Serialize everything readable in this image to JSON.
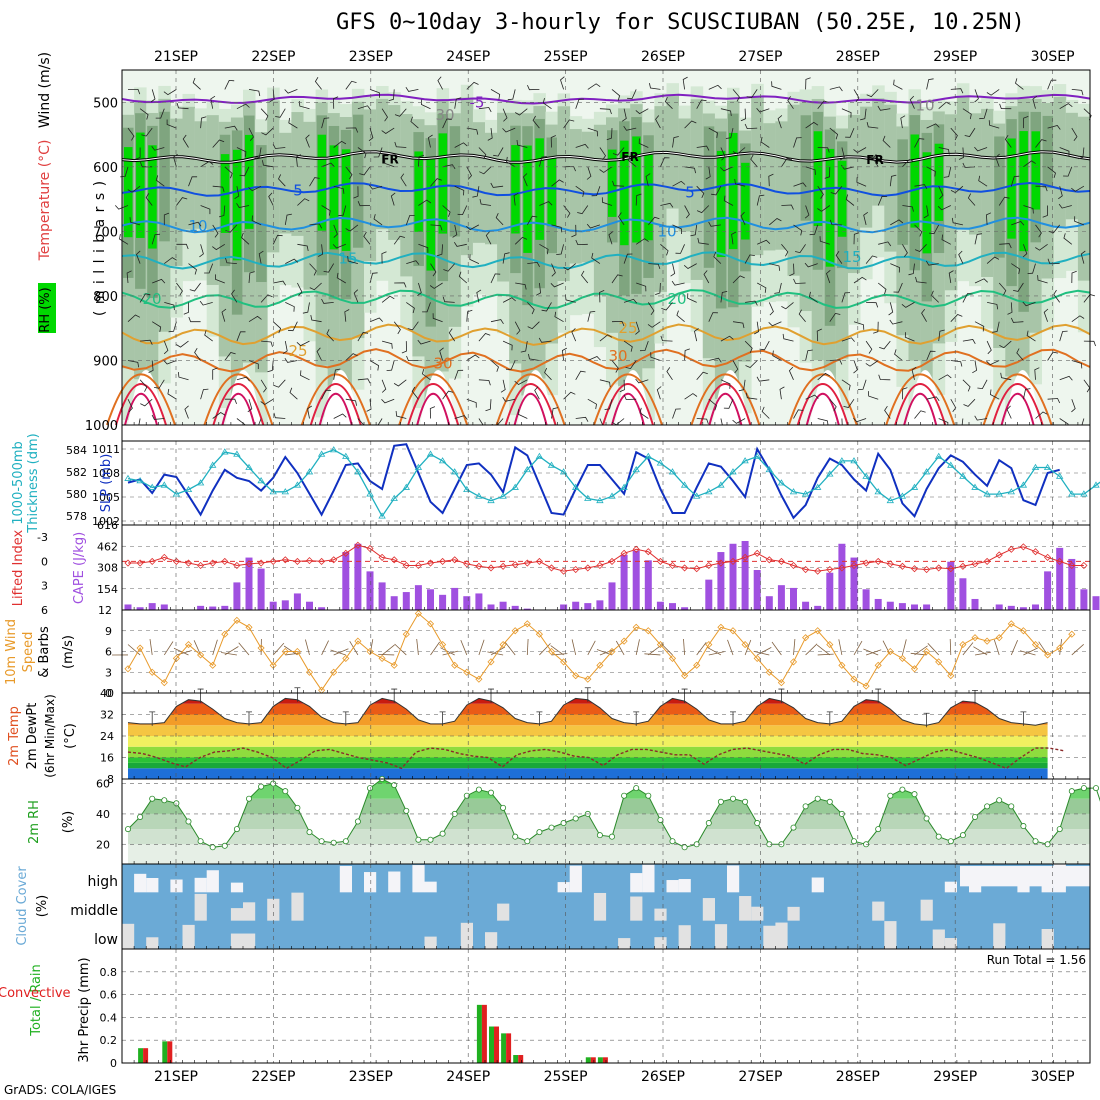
{
  "title": "GFS 0~10day 3-hourly for SCUSCIUBAN (50.25E, 10.25N)",
  "footer": "GrADS: COLA/IGES",
  "colors": {
    "rh_dark": "#5c8a5c",
    "rh_mid": "#9cbc9c",
    "rh_light": "#d4e8d4",
    "rh_green": "#00d800",
    "slp": "#1030c0",
    "thick": "#20b0c0",
    "cape": "#a050e0",
    "li": "#e03030",
    "wind10": "#e89a2a",
    "barb": "#806040",
    "cloud": "#6baad6",
    "precip_total": "#20b020",
    "precip_conv": "#e02020"
  },
  "chart_data": {
    "type": "meteogram",
    "date_labels": [
      "21SEP",
      "22SEP",
      "23SEP",
      "24SEP",
      "25SEP",
      "26SEP",
      "27SEP",
      "28SEP",
      "29SEP",
      "30SEP"
    ],
    "panels": [
      {
        "id": "upper_air",
        "type": "heatmap",
        "ylabel_parts": [
          "RH (%)",
          "Temperature (°C)",
          "Wind (m/s)"
        ],
        "ylabel_units": "( m i l l i b a r s )",
        "y_ticks": [
          500,
          600,
          700,
          800,
          900,
          1000
        ],
        "ylim": [
          450,
          1000
        ],
        "temperature_isotherms": [
          {
            "label": "-5",
            "p": 495,
            "color": "#8020c0"
          },
          {
            "label": "FR",
            "p": 585,
            "color": "#000000"
          },
          {
            "label": "5",
            "p": 635,
            "color": "#1050e0"
          },
          {
            "label": "10",
            "p": 690,
            "color": "#2090e0"
          },
          {
            "label": "15",
            "p": 745,
            "color": "#20b0c0"
          },
          {
            "label": "20",
            "p": 805,
            "color": "#20c080"
          },
          {
            "label": "25",
            "p": 860,
            "color": "#e0a030"
          },
          {
            "label": "30",
            "p": 900,
            "color": "#e07020"
          }
        ],
        "contour_labels": [
          "-5",
          "FR",
          "FR",
          "FR",
          "5",
          "5",
          "10",
          "10",
          "15",
          "15",
          "20",
          "20",
          "25",
          "25",
          "30",
          "30",
          "30",
          "10"
        ]
      },
      {
        "id": "slp_thickness",
        "type": "line",
        "ylabel_left": "1000-500mb Thickness (dm)",
        "ylabel_right": "SLP (mb)",
        "left_ticks": [
          578,
          580,
          582,
          584
        ],
        "left_lim": [
          577.2,
          584.8
        ],
        "right_ticks": [
          1002,
          1005,
          1008,
          1011
        ],
        "right_lim": [
          1001.5,
          1012
        ],
        "series": [
          {
            "name": "SLP (mb)",
            "values": [
              1006.8,
              1007.2,
              1005.5,
              1007.8,
              1007.5,
              1005.2,
              1002.8,
              1005.8,
              1008.4,
              1007.4,
              1007.0,
              1005.8,
              1007.4,
              1010.0,
              1008.0,
              1005.4,
              1002.8,
              1005.8,
              1009.0,
              1009.2,
              1007.0,
              1006.0,
              1011.4,
              1011.6,
              1008.0,
              1004.4,
              1003.0,
              1006.0,
              1009.0,
              1009.2,
              1007.8,
              1005.6,
              1011.2,
              1010.2,
              1006.6,
              1003.0,
              1002.8,
              1006.0,
              1009.0,
              1009.0,
              1007.2,
              1005.4,
              1010.6,
              1009.8,
              1006.0,
              1003.0,
              1003.0,
              1006.2,
              1009.2,
              1008.8,
              1007.0,
              1005.0,
              1011.0,
              1008.4,
              1005.2,
              1002.4,
              1004.0,
              1007.4,
              1009.8,
              1009.0,
              1007.2,
              1005.8,
              1010.4,
              1008.4,
              1004.2,
              1002.6,
              1006.0,
              1008.6,
              1010.2,
              1009.4,
              1007.8,
              1006.4,
              1009.6,
              1008.6,
              1004.6,
              1004.0,
              1008.0,
              1008.4
            ]
          },
          {
            "name": "1000-500mb Thickness (dm)",
            "values": [
              581.4,
              581.2,
              580.6,
              580.8,
              580.0,
              580.4,
              581.0,
              582.6,
              583.8,
              583.6,
              582.4,
              581.2,
              580.2,
              580.2,
              580.8,
              582.0,
              583.6,
              584.0,
              583.4,
              582.0,
              580.0,
              578.0,
              579.6,
              580.6,
              582.4,
              583.6,
              583.0,
              582.0,
              580.4,
              579.8,
              579.4,
              579.8,
              580.6,
              582.2,
              583.4,
              582.6,
              582.0,
              580.6,
              579.6,
              579.4,
              579.8,
              580.6,
              582.2,
              583.4,
              582.8,
              582.0,
              580.8,
              579.8,
              580.2,
              580.8,
              582.0,
              583.0,
              583.4,
              582.2,
              581.0,
              580.2,
              580.0,
              580.6,
              581.8,
              583.0,
              583.0,
              581.6,
              580.2,
              579.4,
              579.8,
              580.6,
              582.0,
              583.4,
              582.6,
              581.6,
              580.6,
              580.0,
              580.0,
              580.2,
              580.8,
              582.4,
              582.4,
              581.6,
              580.0,
              580.0,
              580.8,
              581.6
            ]
          }
        ]
      },
      {
        "id": "cape_li",
        "type": "bar",
        "ylabel_left": "Lifted Index",
        "ylabel_right": "CAPE (J/kg)",
        "left_ticks": [
          "-3",
          "0",
          "3",
          "6"
        ],
        "right_ticks": [
          154,
          308,
          462,
          616
        ],
        "right_lim": [
          0,
          616
        ],
        "series": [
          {
            "name": "CAPE (J/kg)",
            "values": [
              40,
              20,
              50,
              40,
              0,
              0,
              30,
              25,
              30,
              200,
              380,
              300,
              60,
              70,
              120,
              60,
              20,
              0,
              420,
              480,
              280,
              200,
              100,
              130,
              180,
              150,
              110,
              160,
              100,
              120,
              40,
              60,
              30,
              10,
              0,
              0,
              40,
              60,
              50,
              70,
              200,
              400,
              430,
              360,
              60,
              50,
              20,
              0,
              220,
              420,
              480,
              500,
              290,
              100,
              180,
              160,
              60,
              30,
              270,
              480,
              380,
              150,
              80,
              60,
              50,
              40,
              40,
              0,
              350,
              230,
              80,
              0,
              40,
              30,
              20,
              40,
              280,
              450,
              370,
              150,
              100,
              100
            ]
          },
          {
            "name": "Lifted Index",
            "values": [
              0.2,
              0.2,
              0.0,
              -0.5,
              0.0,
              0.2,
              0.5,
              0.2,
              0.0,
              0.5,
              0.3,
              0.2,
              0.0,
              -0.2,
              0.0,
              -0.1,
              0.0,
              -0.2,
              -1.0,
              -2.0,
              -1.6,
              -0.5,
              -0.2,
              0.5,
              0.5,
              0.2,
              0.0,
              -0.2,
              0.3,
              0.6,
              0.8,
              0.6,
              0.4,
              0.2,
              0.0,
              0.8,
              1.2,
              1.0,
              0.8,
              0.5,
              0.0,
              -1.0,
              -1.5,
              -1.2,
              0.0,
              0.5,
              0.8,
              0.9,
              0.5,
              0.2,
              0.0,
              -0.5,
              -1.0,
              -0.2,
              0.0,
              0.5,
              1.0,
              1.2,
              1.0,
              0.8,
              0.5,
              0.2,
              0.0,
              0.3,
              0.6,
              0.9,
              1.0,
              0.8,
              0.9,
              0.6,
              0.3,
              0.0,
              -0.8,
              -1.5,
              -1.8,
              -1.2,
              -0.5,
              0.0,
              0.5,
              0.5
            ]
          }
        ]
      },
      {
        "id": "wind10m",
        "type": "line",
        "ylabel": "10m Wind Speed & Barbs (m/s)",
        "y_ticks": [
          0,
          3,
          6,
          9,
          12
        ],
        "ylim": [
          0,
          12
        ],
        "series": [
          {
            "name": "10m Wind Speed",
            "values": [
              3.5,
              6.5,
              3.0,
              1.5,
              5.0,
              7.0,
              5.5,
              4.0,
              8.5,
              10.5,
              9.5,
              6.5,
              4.0,
              6.0,
              6.0,
              3.0,
              0.4,
              3.0,
              5.0,
              7.5,
              6.0,
              5.0,
              4.0,
              8.5,
              11.5,
              10.0,
              7.0,
              4.0,
              3.0,
              2.0,
              4.5,
              7.0,
              9.0,
              10.0,
              8.5,
              6.0,
              4.5,
              2.5,
              2.0,
              4.0,
              6.0,
              7.5,
              9.5,
              9.0,
              7.0,
              5.0,
              2.5,
              4.0,
              7.0,
              9.5,
              9.0,
              7.0,
              5.0,
              3.0,
              1.5,
              4.5,
              8.0,
              9.0,
              7.0,
              4.0,
              2.0,
              1.0,
              4.0,
              6.0,
              5.0,
              3.5,
              6.0,
              4.5,
              2.5,
              7.0,
              8.0,
              7.5,
              8.0,
              10.0,
              9.0,
              7.0,
              5.5,
              6.5,
              8.5
            ]
          }
        ]
      },
      {
        "id": "temp2m",
        "type": "area",
        "ylabel": "2m Temp 2m DewPt (6hr Min/Max) (°C)",
        "y_ticks": [
          8,
          16,
          24,
          32,
          40
        ],
        "ylim": [
          8,
          40
        ],
        "series": [
          {
            "name": "2m Temp",
            "values": [
              29.0,
              28.5,
              28.5,
              29.0,
              35.0,
              37.5,
              37.0,
              34.0,
              30.5,
              29.0,
              28.5,
              29.0,
              35.0,
              38.0,
              37.5,
              35.0,
              31.0,
              29.0,
              28.5,
              29.0,
              35.5,
              38.0,
              37.0,
              34.0,
              30.0,
              28.5,
              28.5,
              29.5,
              35.5,
              38.0,
              37.0,
              34.5,
              30.5,
              29.0,
              28.5,
              29.5,
              35.5,
              38.0,
              37.5,
              34.5,
              30.5,
              29.0,
              28.5,
              29.5,
              35.0,
              38.0,
              37.0,
              34.0,
              30.0,
              28.5,
              28.5,
              29.5,
              35.0,
              38.0,
              37.0,
              34.5,
              30.5,
              29.0,
              28.5,
              29.5,
              35.0,
              37.5,
              37.0,
              34.0,
              30.0,
              28.5,
              28.0,
              29.0,
              34.5,
              37.0,
              36.5,
              34.0,
              30.5,
              29.0,
              28.5,
              28.0,
              29.0
            ]
          },
          {
            "name": "2m DewPt",
            "values": [
              18.0,
              17.5,
              16.0,
              14.0,
              12.5,
              16.0,
              18.0,
              18.5,
              19.5,
              18.0,
              16.0,
              12.0,
              15.0,
              18.5,
              19.0,
              17.5,
              16.0,
              15.0,
              14.0,
              12.0,
              18.0,
              19.5,
              19.0,
              17.5,
              16.5,
              16.0,
              12.5,
              17.0,
              18.5,
              19.0,
              18.0,
              16.5,
              16.0,
              13.0,
              17.0,
              19.0,
              19.0,
              18.0,
              17.0,
              17.0,
              13.5,
              17.0,
              19.0,
              19.5,
              18.5,
              17.5,
              16.5,
              13.5,
              17.0,
              19.0,
              19.0,
              17.5,
              17.0,
              16.0,
              13.0,
              15.5,
              18.0,
              19.0,
              17.5,
              16.0,
              14.0,
              12.0,
              16.0,
              19.5,
              19.5,
              18.5
            ]
          }
        ]
      },
      {
        "id": "rh2m",
        "type": "area",
        "ylabel": "2m RH (%)",
        "y_ticks": [
          20,
          40,
          60
        ],
        "ylim": [
          7,
          63
        ],
        "series": [
          {
            "name": "2m RH",
            "values": [
              30,
              38,
              50,
              49,
              47,
              35,
              22,
              18,
              19,
              30,
              50,
              58,
              60,
              55,
              44,
              28,
              22,
              21,
              22,
              35,
              57,
              63,
              59,
              42,
              23,
              23,
              27,
              40,
              52,
              56,
              54,
              44,
              25,
              22,
              28,
              31,
              34,
              37,
              40,
              26,
              25,
              52,
              57,
              52,
              36,
              22,
              18,
              20,
              34,
              48,
              50,
              48,
              34,
              20,
              20,
              31,
              45,
              50,
              48,
              40,
              22,
              20,
              30,
              52,
              56,
              53,
              37,
              25,
              22,
              26,
              38,
              45,
              49,
              45,
              32,
              22,
              20,
              30,
              55,
              57,
              57,
              33
            ]
          }
        ]
      },
      {
        "id": "cloud",
        "type": "heatmap",
        "ylabel": "Cloud Cover (%)",
        "rows": [
          "high",
          "middle",
          "low"
        ]
      },
      {
        "id": "precip",
        "type": "bar",
        "ylabel_parts": [
          "Total / Rain",
          "Convective"
        ],
        "ylabel_units": "3hr Precip (mm)",
        "y_ticks": [
          0,
          0.2,
          0.4,
          0.6,
          0.8
        ],
        "ylim": [
          0,
          1.0
        ],
        "run_total_label": "Run Total = 1.56",
        "events": [
          {
            "index": 1,
            "value": 0.13
          },
          {
            "index": 3,
            "value": 0.19
          },
          {
            "index": 29,
            "value": 0.51
          },
          {
            "index": 30,
            "value": 0.32
          },
          {
            "index": 31,
            "value": 0.26
          },
          {
            "index": 32,
            "value": 0.07
          },
          {
            "index": 38,
            "value": 0.05
          },
          {
            "index": 39,
            "value": 0.05
          }
        ]
      }
    ]
  }
}
